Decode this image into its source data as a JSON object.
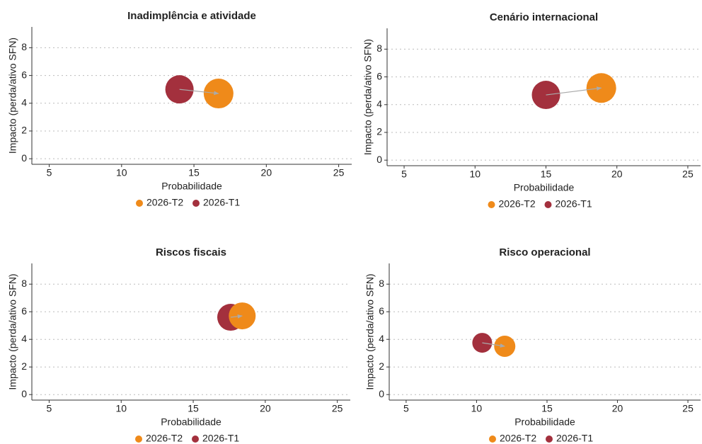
{
  "chart_data": [
    {
      "type": "bubble",
      "title": "Inadimplência e atividade",
      "x_label": "Probabilidade",
      "y_label": "Impacto (perda/ativo SFN)",
      "xlim": [
        3.8,
        25.9
      ],
      "ylim": [
        -0.4,
        9.5
      ],
      "xticks": [
        5,
        10,
        15,
        20,
        25
      ],
      "yticks": [
        0,
        2,
        4,
        6,
        8
      ],
      "grid": true,
      "series": [
        {
          "name": "2026-T2",
          "color": "#ef8a1a",
          "x": [
            16.7
          ],
          "values": [
            4.7
          ],
          "sizes": [
            21
          ]
        },
        {
          "name": "2026-T1",
          "color": "#a3303d",
          "x": [
            14.0
          ],
          "values": [
            5.0
          ],
          "sizes": [
            20
          ]
        }
      ]
    },
    {
      "type": "bubble",
      "title": "Cenário internacional",
      "x_label": "Probabilidade",
      "y_label": "Impacto (perda/ativo SFN)",
      "xlim": [
        3.8,
        25.9
      ],
      "ylim": [
        -0.4,
        9.5
      ],
      "xticks": [
        5,
        10,
        15,
        20,
        25
      ],
      "yticks": [
        0,
        2,
        4,
        6,
        8
      ],
      "grid": true,
      "series": [
        {
          "name": "2026-T2",
          "color": "#ef8a1a",
          "x": [
            18.9
          ],
          "values": [
            5.2
          ],
          "sizes": [
            21
          ]
        },
        {
          "name": "2026-T1",
          "color": "#a3303d",
          "x": [
            15.0
          ],
          "values": [
            4.7
          ],
          "sizes": [
            20
          ]
        }
      ]
    },
    {
      "type": "bubble",
      "title": "Riscos fiscais",
      "x_label": "Probabilidade",
      "y_label": "Impacto (perda/ativo SFN)",
      "xlim": [
        3.8,
        25.9
      ],
      "ylim": [
        -0.4,
        9.5
      ],
      "xticks": [
        5,
        10,
        15,
        20,
        25
      ],
      "yticks": [
        0,
        2,
        4,
        6,
        8
      ],
      "grid": true,
      "series": [
        {
          "name": "2026-T2",
          "color": "#ef8a1a",
          "x": [
            18.4
          ],
          "values": [
            5.7
          ],
          "sizes": [
            19
          ]
        },
        {
          "name": "2026-T1",
          "color": "#a3303d",
          "x": [
            17.6
          ],
          "values": [
            5.6
          ],
          "sizes": [
            19
          ]
        }
      ]
    },
    {
      "type": "bubble",
      "title": "Risco operacional",
      "x_label": "Probabilidade",
      "y_label": "Impacto (perda/ativo SFN)",
      "xlim": [
        3.8,
        25.9
      ],
      "ylim": [
        -0.4,
        9.5
      ],
      "xticks": [
        5,
        10,
        15,
        20,
        25
      ],
      "yticks": [
        0,
        2,
        4,
        6,
        8
      ],
      "grid": true,
      "series": [
        {
          "name": "2026-T2",
          "color": "#ef8a1a",
          "x": [
            12.0
          ],
          "values": [
            3.5
          ],
          "sizes": [
            15
          ]
        },
        {
          "name": "2026-T1",
          "color": "#a3303d",
          "x": [
            10.4
          ],
          "values": [
            3.75
          ],
          "sizes": [
            14
          ]
        }
      ]
    }
  ]
}
